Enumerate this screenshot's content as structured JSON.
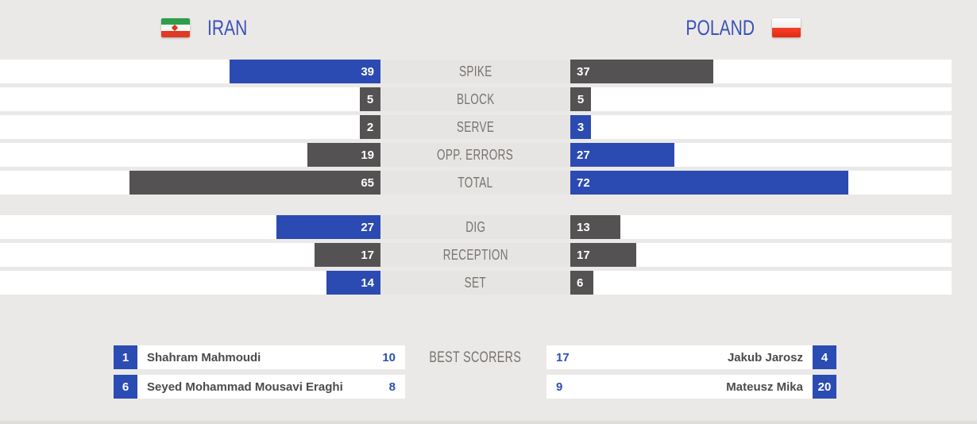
{
  "header": {
    "left_team": "IRAN",
    "right_team": "POLAND"
  },
  "chart_data": {
    "type": "bar",
    "title": "Volleyball match statistics: Iran vs Poland",
    "categories": [
      "SPIKE",
      "BLOCK",
      "SERVE",
      "OPP. ERRORS",
      "TOTAL",
      "DIG",
      "RECEPTION",
      "SET"
    ],
    "series": [
      {
        "name": "IRAN",
        "values": [
          39,
          5,
          2,
          19,
          65,
          27,
          17,
          14
        ]
      },
      {
        "name": "POLAND",
        "values": [
          37,
          5,
          3,
          27,
          72,
          13,
          17,
          6
        ]
      }
    ],
    "group_break_after": "TOTAL",
    "layout_hint": "mirrored horizontal bars, labels centered between, higher value highlighted",
    "colors": {
      "leading_bar": "#2b4bb3",
      "trailing_bar": "#545252",
      "team_name": "#3a52b8"
    }
  },
  "best_scorers": {
    "label": "BEST SCORERS",
    "left": [
      {
        "jersey": "1",
        "name": "Shahram Mahmoudi",
        "points": "10"
      },
      {
        "jersey": "6",
        "name": "Seyed Mohammad Mousavi Eraghi",
        "points": "8"
      }
    ],
    "right": [
      {
        "jersey": "4",
        "name": "Jakub Jarosz",
        "points": "17"
      },
      {
        "jersey": "20",
        "name": "Mateusz Mika",
        "points": "9"
      }
    ]
  }
}
